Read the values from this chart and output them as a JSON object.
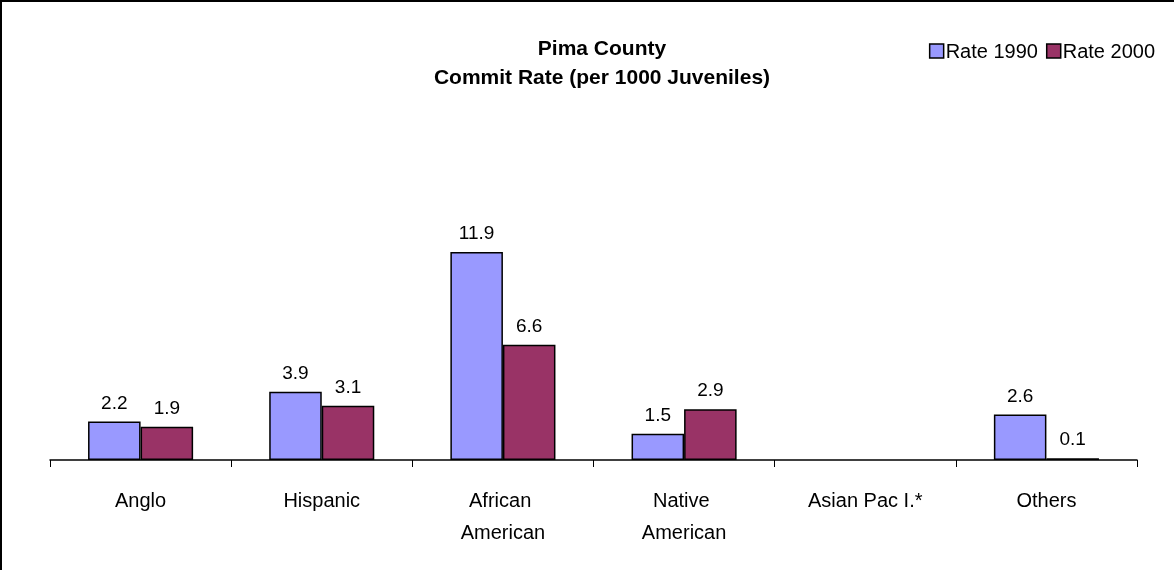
{
  "chart_data": {
    "type": "bar",
    "title": "Pima County",
    "subtitle": "Commit Rate (per 1000 Juveniles)",
    "categories": [
      "Anglo",
      "Hispanic",
      "African American",
      "Native American",
      "Asian Pac I.*",
      "Others"
    ],
    "series": [
      {
        "name": "Rate 1990",
        "color": "#9999ff",
        "values": [
          2.2,
          3.9,
          11.9,
          1.5,
          null,
          2.6
        ]
      },
      {
        "name": "Rate 2000",
        "color": "#993366",
        "values": [
          1.9,
          3.1,
          6.6,
          2.9,
          null,
          0.1
        ]
      }
    ],
    "data_labels": true,
    "legend": "top right"
  }
}
